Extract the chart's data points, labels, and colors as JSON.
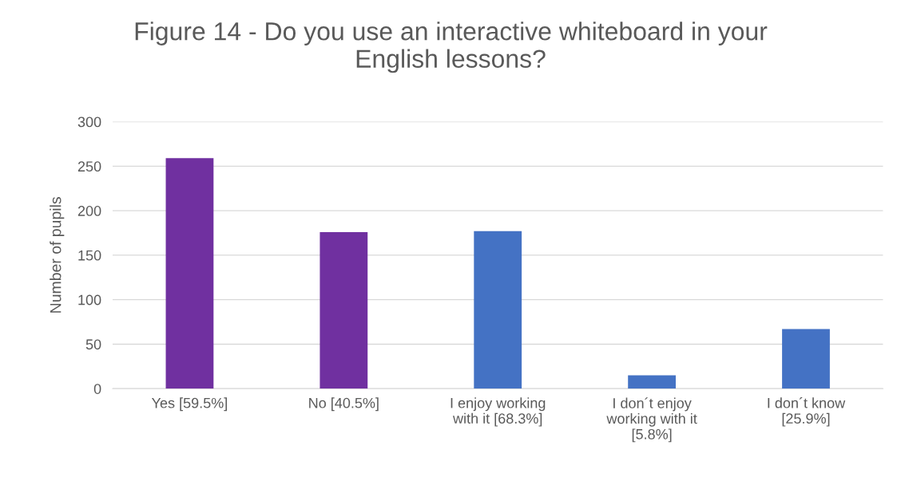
{
  "chart_data": {
    "type": "bar",
    "title": "Figure 14 - Do you use an interactive whiteboard in your\nEnglish lessons?",
    "ylabel": "Number of pupils",
    "categories": [
      "Yes [59.5%]",
      "No [40.5%]",
      "I enjoy working\nwith it [68.3%]",
      "I don´t enjoy\nworking with it\n[5.8%]",
      "I don´t know\n[25.9%]"
    ],
    "values": [
      259,
      176,
      177,
      15,
      67
    ],
    "colors": [
      "#7030a0",
      "#7030a0",
      "#4472c4",
      "#4472c4",
      "#4472c4"
    ],
    "ylim": [
      0,
      300
    ],
    "yticks": [
      0,
      50,
      100,
      150,
      200,
      250,
      300
    ],
    "grid": "y"
  }
}
